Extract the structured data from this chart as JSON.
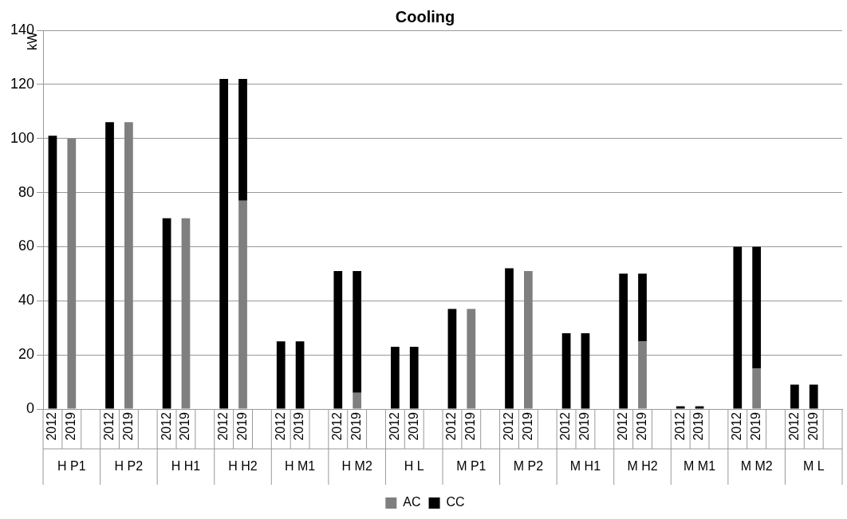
{
  "chart_data": {
    "type": "bar",
    "title": "Cooling",
    "ylabel": "kW",
    "stacked": true,
    "grid": "y",
    "legend": "bottom",
    "categories": [
      "2012",
      "2019",
      null,
      "2012",
      "2019",
      null,
      "2012",
      "2019",
      null,
      "2012",
      "2019",
      null,
      "2012",
      "2019",
      null,
      "2012",
      "2019",
      null,
      "2012",
      "2019",
      null,
      "2012",
      "2019",
      null,
      "2012",
      "2019",
      null,
      "2012",
      "2019",
      null,
      "2012",
      "2019",
      null,
      "2012",
      "2019",
      null,
      "2012",
      "2019",
      null,
      "2012",
      "2019",
      null
    ],
    "annotations": [
      "H P1",
      "H P2",
      "H H1",
      "H H2",
      "H M1",
      "H M2",
      "H L",
      "M P1",
      "M P2",
      "M H1",
      "M H2",
      "M M1",
      "M M2",
      "M L"
    ],
    "ylim": [
      0,
      140
    ],
    "yticks": [
      0,
      20,
      40,
      60,
      80,
      100,
      120,
      140
    ],
    "series": [
      {
        "name": "AC",
        "color": "#7f7f7f",
        "values": [
          null,
          100,
          null,
          null,
          106,
          null,
          null,
          70.5,
          null,
          null,
          77,
          null,
          null,
          null,
          null,
          null,
          6,
          null,
          null,
          null,
          null,
          null,
          37,
          null,
          null,
          51,
          null,
          null,
          null,
          null,
          null,
          25,
          null,
          null,
          null,
          null,
          null,
          15,
          null,
          null,
          null,
          null
        ]
      },
      {
        "name": "CC",
        "color": "#000000",
        "values": [
          101,
          null,
          null,
          106,
          null,
          null,
          70.5,
          null,
          null,
          122,
          45,
          null,
          25,
          25,
          null,
          51,
          45,
          null,
          23,
          23,
          null,
          37,
          null,
          null,
          52,
          null,
          null,
          28,
          28,
          null,
          50,
          25,
          null,
          1,
          1,
          null,
          60,
          45,
          null,
          9,
          9,
          null
        ]
      }
    ]
  }
}
